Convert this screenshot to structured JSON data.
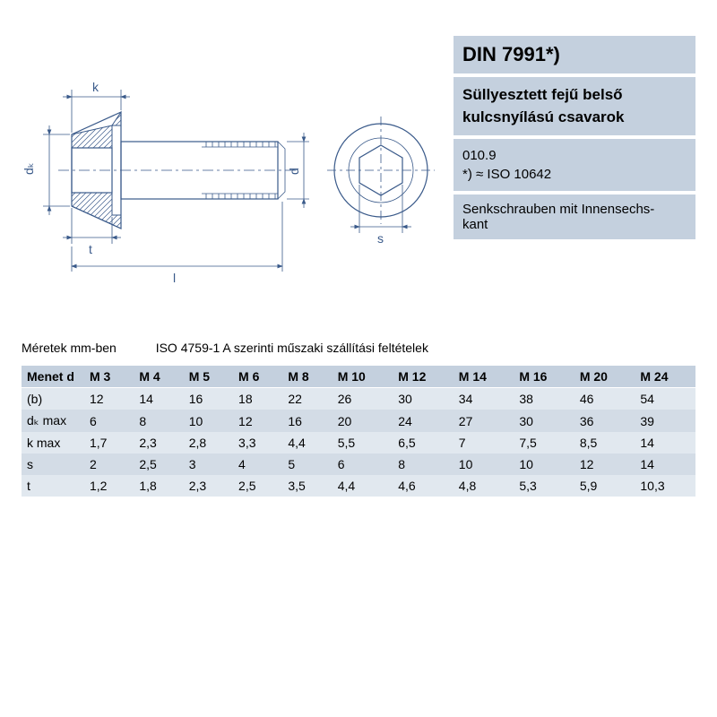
{
  "info": {
    "standard": "DIN 7991*)",
    "title": "Süllyesztett fejű belső kulcsnyílású csavarok",
    "grade": "010.9",
    "iso_note": "*) ≈ ISO 10642",
    "german": "Senkschrauben mit Innensechs-\nkant"
  },
  "captions": {
    "units": "Méretek mm-ben",
    "delivery": "ISO 4759-1 A szerinti műszaki szállítási feltételek"
  },
  "drawing": {
    "labels": {
      "k": "k",
      "dk": "dₖ",
      "t": "t",
      "l": "l",
      "s": "s",
      "d": "d"
    },
    "colors": {
      "line": "#3a5a8a",
      "background": "#ffffff"
    }
  },
  "table": {
    "header_background": "#c4d0de",
    "row_background_a": "#e1e8ef",
    "row_background_b": "#d3dce6",
    "columns": [
      "Menet d",
      "M 3",
      "M 4",
      "M 5",
      "M 6",
      "M 8",
      "M 10",
      "M 12",
      "M 14",
      "M 16",
      "M 20",
      "M 24"
    ],
    "rows": [
      {
        "label": "(b)",
        "v": [
          "12",
          "14",
          "16",
          "18",
          "22",
          "26",
          "30",
          "34",
          "38",
          "46",
          "54"
        ]
      },
      {
        "label": "dₖ max",
        "v": [
          "6",
          "8",
          "10",
          "12",
          "16",
          "20",
          "24",
          "27",
          "30",
          "36",
          "39"
        ]
      },
      {
        "label": "k max",
        "v": [
          "1,7",
          "2,3",
          "2,8",
          "3,3",
          "4,4",
          "5,5",
          "6,5",
          "7",
          "7,5",
          "8,5",
          "14"
        ]
      },
      {
        "label": "s",
        "v": [
          "2",
          "2,5",
          "3",
          "4",
          "5",
          "6",
          "8",
          "10",
          "10",
          "12",
          "14"
        ]
      },
      {
        "label": "t",
        "v": [
          "1,2",
          "1,8",
          "2,3",
          "2,5",
          "3,5",
          "4,4",
          "4,6",
          "4,8",
          "5,3",
          "5,9",
          "10,3"
        ]
      }
    ]
  }
}
